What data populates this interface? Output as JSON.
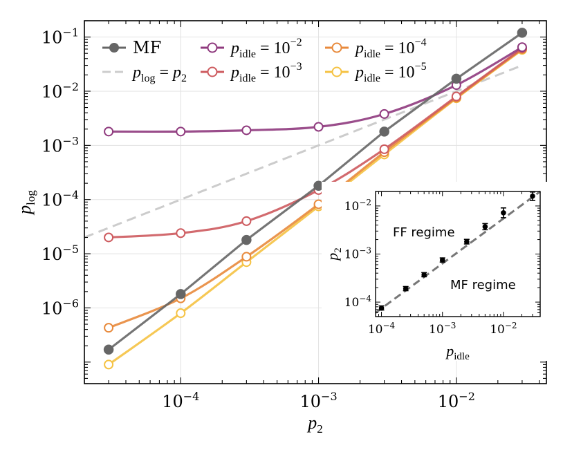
{
  "chart_data": [
    {
      "type": "line",
      "xscale": "log",
      "yscale": "log",
      "xlabel": "p_2",
      "ylabel": "p_log",
      "xlim": [
        2e-05,
        0.045
      ],
      "ylim": [
        4e-08,
        0.2
      ],
      "x_ticks": [
        {
          "value": 0.0001,
          "base": "10",
          "exp": "−4"
        },
        {
          "value": 0.001,
          "base": "10",
          "exp": "−3"
        },
        {
          "value": 0.01,
          "base": "10",
          "exp": "−2"
        }
      ],
      "y_ticks": [
        {
          "value": 1e-06,
          "base": "10",
          "exp": "−6"
        },
        {
          "value": 1e-05,
          "base": "10",
          "exp": "−5"
        },
        {
          "value": 0.0001,
          "base": "10",
          "exp": "−4"
        },
        {
          "value": 0.001,
          "base": "10",
          "exp": "−3"
        },
        {
          "value": 0.01,
          "base": "10",
          "exp": "−2"
        },
        {
          "value": 0.1,
          "base": "10",
          "exp": "−1"
        }
      ],
      "grid": true,
      "legend_position": "top-left",
      "x": [
        3e-05,
        0.0001,
        0.0003,
        0.001,
        0.003,
        0.01,
        0.03
      ],
      "series": [
        {
          "name": "MF",
          "label": "MF",
          "color": "#666666",
          "marker": "filled-circle",
          "values": [
            1.7e-07,
            1.8e-06,
            1.8e-05,
            0.00018,
            0.0018,
            0.017,
            0.12
          ]
        },
        {
          "name": "p_idle = 10^-2",
          "label_main": "p",
          "label_sub": "idle",
          "label_rest": " = 10",
          "label_exp": "−2",
          "color": "#8f3a7e",
          "marker": "open-circle",
          "values": [
            0.0018,
            0.0018,
            0.0019,
            0.0022,
            0.0038,
            0.013,
            0.065
          ]
        },
        {
          "name": "p_idle = 10^-3",
          "label_main": "p",
          "label_sub": "idle",
          "label_rest": " = 10",
          "label_exp": "−3",
          "color": "#cd5a5e",
          "marker": "open-circle",
          "values": [
            2e-05,
            2.4e-05,
            4e-05,
            0.00015,
            0.00085,
            0.008,
            0.062
          ]
        },
        {
          "name": "p_idle = 10^-4",
          "label_main": "p",
          "label_sub": "idle",
          "label_rest": " = 10",
          "label_exp": "−4",
          "color": "#e88a3c",
          "marker": "open-circle",
          "values": [
            4.3e-07,
            1.5e-06,
            8.8e-06,
            8.2e-05,
            0.00075,
            0.0076,
            0.06
          ]
        },
        {
          "name": "p_idle = 10^-5",
          "label_main": "p",
          "label_sub": "idle",
          "label_rest": " = 10",
          "label_exp": "−5",
          "color": "#f5c242",
          "marker": "open-circle",
          "values": [
            9e-08,
            8e-07,
            7e-06,
            7.5e-05,
            0.00068,
            0.0074,
            0.058
          ]
        }
      ],
      "reference_line": {
        "name": "p_log = p_2",
        "label_lhs": "p",
        "label_lhs_sub": "log",
        "label_mid": " = ",
        "label_rhs": "p",
        "label_rhs_sub": "2",
        "color": "#cccccc",
        "style": "dashed"
      }
    },
    {
      "type": "scatter",
      "xscale": "log",
      "yscale": "log",
      "xlabel": "p_idle",
      "ylabel": "p_2",
      "xlim": [
        8e-05,
        0.04
      ],
      "ylim": [
        5e-05,
        0.02
      ],
      "x_ticks": [
        {
          "value": 0.0001,
          "base": "10",
          "exp": "−4"
        },
        {
          "value": 0.001,
          "base": "10",
          "exp": "−3"
        },
        {
          "value": 0.01,
          "base": "10",
          "exp": "−2"
        }
      ],
      "y_ticks": [
        {
          "value": 0.0001,
          "base": "10",
          "exp": "−4"
        },
        {
          "value": 0.001,
          "base": "10",
          "exp": "−3"
        },
        {
          "value": 0.01,
          "base": "10",
          "exp": "−2"
        }
      ],
      "points": [
        {
          "x": 0.0001,
          "y": 7.5e-05,
          "err_lo": 6.5e-06,
          "err_hi": 8.5e-06
        },
        {
          "x": 0.00025,
          "y": 0.00019,
          "err_lo": 1.7e-05,
          "err_hi": 2.1e-05
        },
        {
          "x": 0.0005,
          "y": 0.00037,
          "err_lo": 3.3e-05,
          "err_hi": 4.1e-05
        },
        {
          "x": 0.001,
          "y": 0.00075,
          "err_lo": 7e-05,
          "err_hi": 8e-05
        },
        {
          "x": 0.0025,
          "y": 0.0018,
          "err_lo": 0.00018,
          "err_hi": 0.00022
        },
        {
          "x": 0.005,
          "y": 0.0037,
          "err_lo": 0.0005,
          "err_hi": 0.0006
        },
        {
          "x": 0.01,
          "y": 0.0072,
          "err_lo": 0.0015,
          "err_hi": 0.0019
        },
        {
          "x": 0.03,
          "y": 0.016,
          "err_lo": 0.003,
          "err_hi": 0.0035
        }
      ],
      "fit_line": {
        "slope": 1.0,
        "intercept_at_x_0.001": 0.00075,
        "style": "dashed",
        "color": "#777777"
      },
      "annotations": [
        {
          "text": "FF regime",
          "at": "upper-left"
        },
        {
          "text": "MF regime",
          "at": "lower-right"
        }
      ]
    }
  ]
}
